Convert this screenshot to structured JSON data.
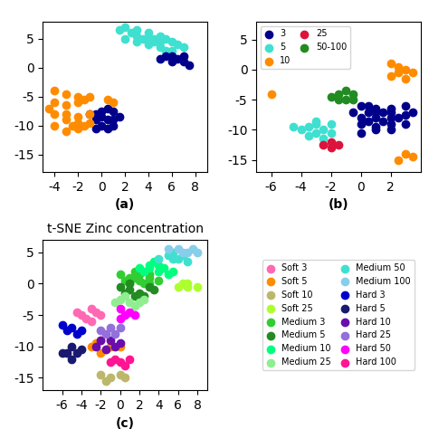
{
  "chart_data": [
    {
      "type": "scatter",
      "xlabel": "(a)",
      "xlim": [
        -5,
        9
      ],
      "ylim": [
        -18,
        8
      ],
      "xticks": [
        -4,
        -2,
        0,
        2,
        4,
        6,
        8
      ],
      "yticks": [
        -15,
        -10,
        -5,
        0,
        5
      ],
      "series": [
        {
          "color": "#40E0D0",
          "x": [
            2,
            3,
            4,
            5,
            4.5,
            5.5,
            6,
            6.5,
            7,
            5,
            4,
            3,
            2.5,
            1.5,
            3.5,
            4.5,
            5,
            6,
            5.5,
            4,
            3,
            2
          ],
          "values": [
            7,
            6.5,
            6,
            5.5,
            5,
            5,
            4.5,
            4,
            3.5,
            4.5,
            5,
            5.5,
            6,
            6.5,
            5,
            4.5,
            3.5,
            3,
            3,
            4,
            4.5,
            5
          ]
        },
        {
          "color": "#00008B",
          "x": [
            5,
            6,
            6.5,
            7,
            7.5,
            6,
            7,
            5.5,
            -0.5,
            0,
            0.5,
            1,
            0,
            -0.5,
            0.5,
            1,
            1.5,
            -1,
            0,
            1,
            -0.5,
            0.5
          ],
          "values": [
            1.5,
            1,
            1.5,
            1,
            0.5,
            2,
            2,
            2,
            -8,
            -7.5,
            -7,
            -7.5,
            -8.5,
            -9,
            -9,
            -9,
            -8.5,
            -8,
            -10,
            -10,
            -10.5,
            -10.5
          ]
        },
        {
          "color": "#FF8C00",
          "x": [
            -4,
            -3,
            -2,
            -1,
            -4,
            -3,
            -2,
            -1.5,
            -4,
            -3,
            -2,
            -1,
            -3,
            -2,
            -1,
            -2.5,
            -4,
            -3,
            -2,
            -1.5,
            -4.5,
            1,
            0.5
          ],
          "values": [
            -4,
            -4.5,
            -5,
            -5,
            -6,
            -6.5,
            -6,
            -5.5,
            -8,
            -8,
            -8.5,
            -8,
            -9,
            -9.5,
            -9.5,
            -10,
            -10,
            -11,
            -10.5,
            -10,
            -7,
            -6,
            -5.5
          ]
        }
      ]
    },
    {
      "type": "scatter",
      "xlabel": "(b)",
      "legend": "upper left",
      "xlim": [
        -7,
        4
      ],
      "ylim": [
        -17,
        8
      ],
      "xticks": [
        -6,
        -4,
        -2,
        0,
        2
      ],
      "yticks": [
        -15,
        -10,
        -5,
        0,
        5
      ],
      "series": [
        {
          "name": "3",
          "color": "#00008B",
          "x": [
            0,
            0.5,
            1,
            1.5,
            2,
            0,
            0.5,
            1,
            1.5,
            2,
            0,
            1,
            2,
            2.5,
            3,
            -0.5,
            0.5,
            1,
            2,
            3,
            3,
            2,
            1,
            0,
            3.5
          ],
          "values": [
            -6,
            -7,
            -6.5,
            -7,
            -7,
            -8,
            -8.5,
            -8,
            -8.5,
            -8,
            -9,
            -9.5,
            -9,
            -8,
            -7.5,
            -7,
            -6,
            -7,
            -6.5,
            -6,
            -9,
            -10,
            -10,
            -10.5,
            -7
          ]
        },
        {
          "name": "5",
          "color": "#40E0D0",
          "x": [
            -3,
            -3.5,
            -2.5,
            -2,
            -3,
            -4,
            -3.5,
            -2.5,
            -4.5,
            -2,
            -3
          ],
          "values": [
            -9,
            -9.5,
            -10,
            -10.5,
            -10.5,
            -10,
            -11,
            -11.5,
            -9.5,
            -9,
            -8.5
          ]
        },
        {
          "name": "10",
          "color": "#FF8C00",
          "x": [
            2,
            2.5,
            3,
            3.5,
            2,
            3,
            2.5,
            3,
            3.5,
            2.5,
            -6
          ],
          "values": [
            1,
            0.5,
            0,
            -0.5,
            -1,
            -1.5,
            -0.5,
            -14,
            -14.5,
            -15,
            -4
          ]
        },
        {
          "name": "25",
          "color": "#DC143C",
          "x": [
            -2,
            -2.5,
            -1.5,
            -2
          ],
          "values": [
            -12,
            -12.5,
            -12.5,
            -13
          ]
        },
        {
          "name": "50-100",
          "color": "#228B22",
          "x": [
            -1,
            -1.5,
            -0.5,
            -2,
            -1,
            -1.5,
            -0.5
          ],
          "values": [
            -3.5,
            -4,
            -4,
            -4.5,
            -5,
            -5,
            -5
          ]
        }
      ]
    },
    {
      "type": "scatter",
      "title": "t-SNE Zinc concentration",
      "xlabel": "(c)",
      "legend": "right",
      "xlim": [
        -8,
        9
      ],
      "ylim": [
        -17,
        7
      ],
      "xticks": [
        -6,
        -4,
        -2,
        0,
        2,
        4,
        6,
        8
      ],
      "yticks": [
        -15,
        -10,
        -5,
        0,
        5
      ],
      "series": [
        {
          "name": "Soft 3",
          "color": "#FF69B4",
          "x": [
            -3,
            -4,
            -3.5,
            -2.5,
            -4.5,
            -3,
            -2
          ],
          "values": [
            -4,
            -5,
            -5.5,
            -4.5,
            -4.5,
            -6,
            -5
          ]
        },
        {
          "name": "Soft 5",
          "color": "#FF8C00",
          "x": [
            -2,
            -1,
            -3,
            -2,
            -1.5,
            0,
            -2.5
          ],
          "values": [
            -9,
            -10,
            -10,
            -11,
            -10.5,
            -10,
            -9.5
          ]
        },
        {
          "name": "Soft 10",
          "color": "#BDB76B",
          "x": [
            -1,
            -2,
            -1.5,
            0,
            0.5
          ],
          "values": [
            -15,
            -14.5,
            -15.5,
            -14.5,
            -15
          ]
        },
        {
          "name": "Soft 25",
          "color": "#ADFF2F",
          "x": [
            6,
            7,
            8,
            7,
            6.5
          ],
          "values": [
            -0.5,
            -0.5,
            -0.5,
            0,
            0
          ]
        },
        {
          "name": "Medium 3",
          "color": "#32CD32",
          "x": [
            1,
            2,
            3,
            2,
            3,
            1.5,
            4,
            2.5,
            1,
            3,
            0,
            0.5,
            1.5
          ],
          "values": [
            0,
            0.5,
            1,
            1.5,
            1.5,
            1,
            0.5,
            0,
            1,
            0,
            1.5,
            0.5,
            2
          ]
        },
        {
          "name": "Medium 5",
          "color": "#228B22",
          "x": [
            1,
            2,
            3,
            2.5,
            1.5,
            3.5,
            0,
            0.5,
            2,
            1
          ],
          "values": [
            -1,
            -1.5,
            -0.5,
            -2,
            -2,
            -1,
            -0.5,
            -1.5,
            -2.5,
            0
          ]
        },
        {
          "name": "Medium 10",
          "color": "#00FF7F",
          "x": [
            2,
            3,
            4,
            3.5,
            2.5,
            4.5,
            5,
            5.5,
            4,
            3
          ],
          "values": [
            2.5,
            3,
            2,
            3.5,
            2,
            2.5,
            1.5,
            2,
            3,
            2.5
          ]
        },
        {
          "name": "Medium 25",
          "color": "#90EE90",
          "x": [
            0,
            1,
            0.5,
            2,
            1.5,
            -0.5,
            2.5
          ],
          "values": [
            -2.5,
            -3,
            -2,
            -3,
            -3.5,
            -3,
            -2.5
          ]
        },
        {
          "name": "Medium 50",
          "color": "#40E0D0",
          "x": [
            4,
            5,
            5.5,
            6,
            6.5,
            7,
            5.5
          ],
          "values": [
            4,
            4.5,
            5,
            4,
            4.5,
            3.5,
            4
          ]
        },
        {
          "name": "Medium 100",
          "color": "#87CEEB",
          "x": [
            5,
            6,
            7,
            8,
            7.5,
            6.5
          ],
          "values": [
            5.5,
            5.5,
            5,
            5,
            5.5,
            5
          ]
        },
        {
          "name": "Hard 3",
          "color": "#0000CD",
          "x": [
            -6,
            -5,
            -4,
            -5.5,
            -4.5
          ],
          "values": [
            -6.5,
            -7,
            -7.5,
            -7.5,
            -8
          ]
        },
        {
          "name": "Hard 5",
          "color": "#191970",
          "x": [
            -5,
            -5.5,
            -4.5,
            -5,
            -6,
            -4
          ],
          "values": [
            -10,
            -11,
            -11,
            -12,
            -11,
            -10.5
          ]
        },
        {
          "name": "Hard 10",
          "color": "#6A0DAD",
          "x": [
            -1,
            -2,
            -0.5,
            -1.5,
            -2.5,
            0
          ],
          "values": [
            -9,
            -9,
            -10,
            -10.5,
            -10,
            -9.5
          ]
        },
        {
          "name": "Hard 25",
          "color": "#9370DB",
          "x": [
            -1,
            -2,
            -1.5,
            0,
            -0.5
          ],
          "values": [
            -7,
            -7.5,
            -8,
            -7,
            -8
          ]
        },
        {
          "name": "Hard 50",
          "color": "#FF00FF",
          "x": [
            0,
            1,
            0.5,
            1.5,
            0
          ],
          "values": [
            -4,
            -4.5,
            -5,
            -5,
            -5.5
          ]
        },
        {
          "name": "Hard 100",
          "color": "#FF1493",
          "x": [
            -0.5,
            0,
            1,
            0.5,
            -1
          ],
          "values": [
            -12,
            -12.5,
            -12,
            -13,
            -12.5
          ]
        }
      ]
    }
  ]
}
